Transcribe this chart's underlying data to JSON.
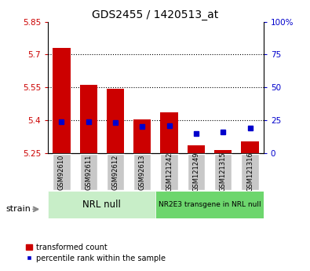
{
  "title": "GDS2455 / 1420513_at",
  "samples": [
    "GSM92610",
    "GSM92611",
    "GSM92612",
    "GSM92613",
    "GSM121242",
    "GSM121249",
    "GSM121315",
    "GSM121316"
  ],
  "transformed_counts": [
    5.73,
    5.56,
    5.545,
    5.405,
    5.435,
    5.285,
    5.265,
    5.305
  ],
  "percentile_ranks": [
    24,
    24,
    23,
    20,
    21,
    15,
    16,
    19
  ],
  "ylim_left": [
    5.25,
    5.85
  ],
  "ylim_right": [
    0,
    100
  ],
  "yticks_left": [
    5.25,
    5.4,
    5.55,
    5.7,
    5.85
  ],
  "yticks_right": [
    0,
    25,
    50,
    75,
    100
  ],
  "ytick_labels_left": [
    "5.25",
    "5.4",
    "5.55",
    "5.7",
    "5.85"
  ],
  "ytick_labels_right": [
    "0",
    "25",
    "50",
    "75",
    "100%"
  ],
  "group1_label": "NRL null",
  "group2_label": "NR2E3 transgene in NRL null",
  "group1_color": "#c8eec8",
  "group2_color": "#6dd66d",
  "bar_color": "#cc0000",
  "dot_color": "#0000cc",
  "bar_bottom": 5.25,
  "bar_width": 0.65,
  "dotted_line_yticks": [
    5.4,
    5.55,
    5.7
  ],
  "ylabel_left_color": "#cc0000",
  "ylabel_right_color": "#0000cc",
  "legend_bar_label": "transformed count",
  "legend_dot_label": "percentile rank within the sample",
  "strain_label": "strain",
  "fig_bg": "#ffffff",
  "plot_bg": "#ffffff",
  "sample_box_color": "#c8c8c8"
}
